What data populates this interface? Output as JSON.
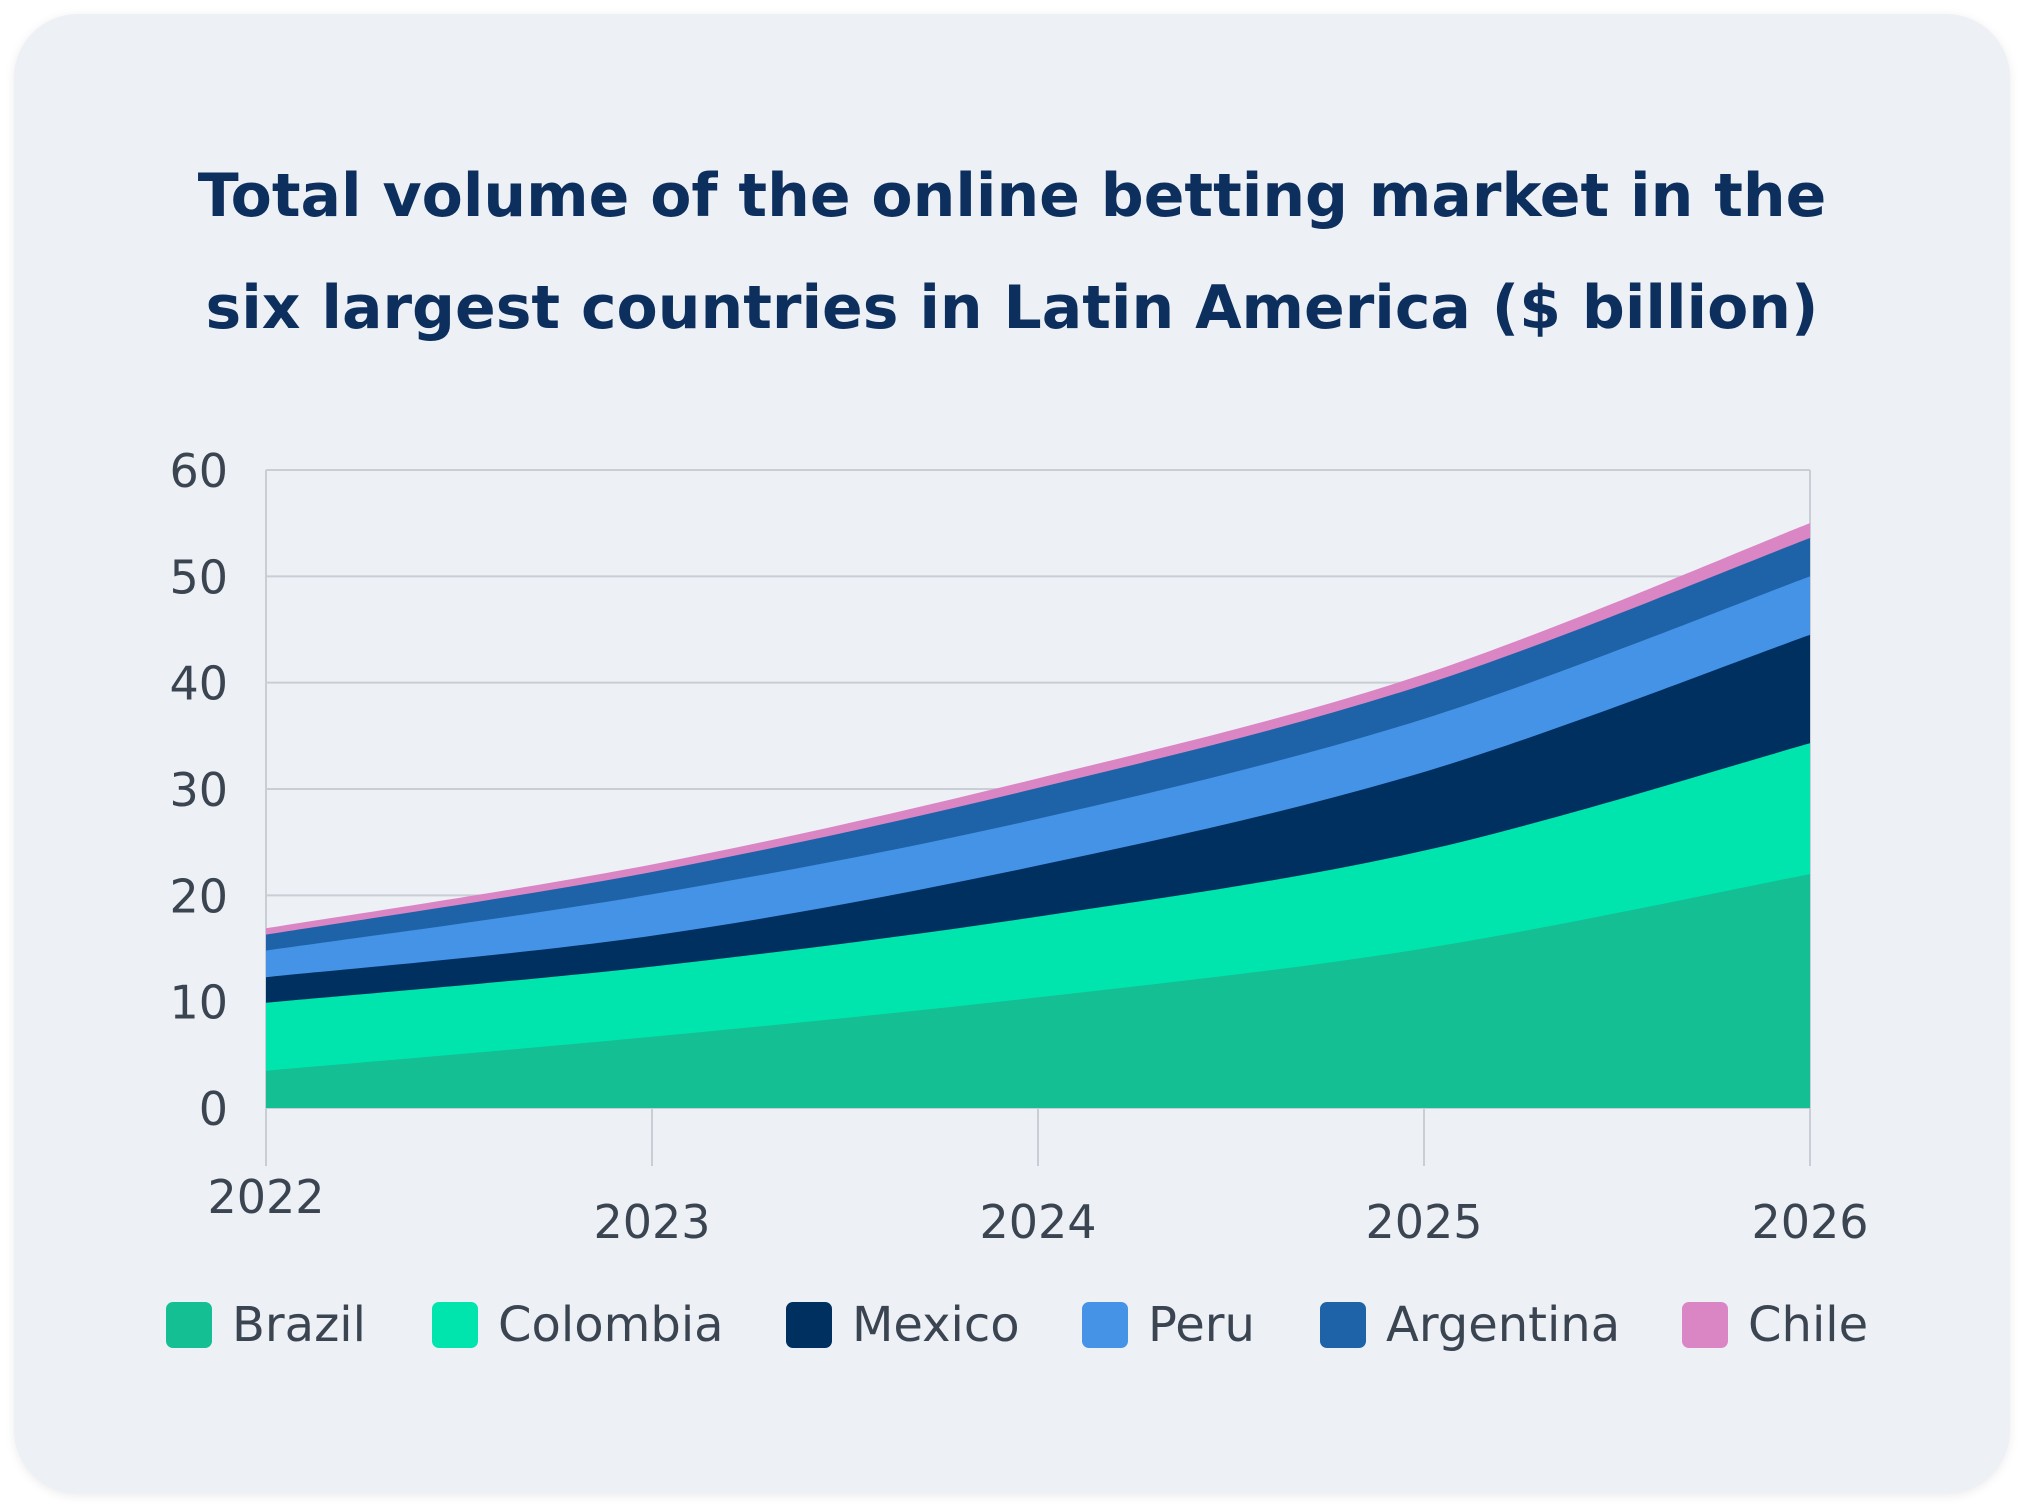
{
  "chart_data": {
    "type": "area",
    "stacked": true,
    "title": "Total volume of the online betting market in the six largest countries in Latin America ($ billion)",
    "title_lines": [
      "Total volume of the online betting market in the",
      "six largest countries in Latin America ($ billion)"
    ],
    "x": [
      2022,
      2023,
      2024,
      2025,
      2026
    ],
    "x_tick_labels": [
      "2022",
      "2023",
      "2024",
      "2025",
      "2026"
    ],
    "y_ticks": [
      0,
      10,
      20,
      30,
      40,
      50,
      60
    ],
    "y_tick_labels": [
      "0",
      "10",
      "20",
      "30",
      "40",
      "50",
      "60"
    ],
    "ylim": [
      0,
      60
    ],
    "grid": "horizontal",
    "legend_position": "bottom",
    "series": [
      {
        "name": "Brazil",
        "color": "#14bf93",
        "values": [
          3.5,
          6.7,
          10.4,
          15.0,
          22.0
        ]
      },
      {
        "name": "Colombia",
        "color": "#00e5ad",
        "values": [
          6.4,
          6.6,
          7.6,
          9.2,
          12.3
        ]
      },
      {
        "name": "Mexico",
        "color": "#00305f",
        "values": [
          2.4,
          2.9,
          4.8,
          7.4,
          10.2
        ]
      },
      {
        "name": "Peru",
        "color": "#4593e7",
        "values": [
          2.5,
          3.9,
          4.4,
          5.0,
          5.5
        ]
      },
      {
        "name": "Argentina",
        "color": "#1e63a8",
        "values": [
          1.5,
          2.1,
          2.9,
          3.2,
          3.6
        ]
      },
      {
        "name": "Chile",
        "color": "#da86c4",
        "values": [
          0.6,
          0.7,
          0.9,
          1.0,
          1.4
        ]
      }
    ]
  }
}
